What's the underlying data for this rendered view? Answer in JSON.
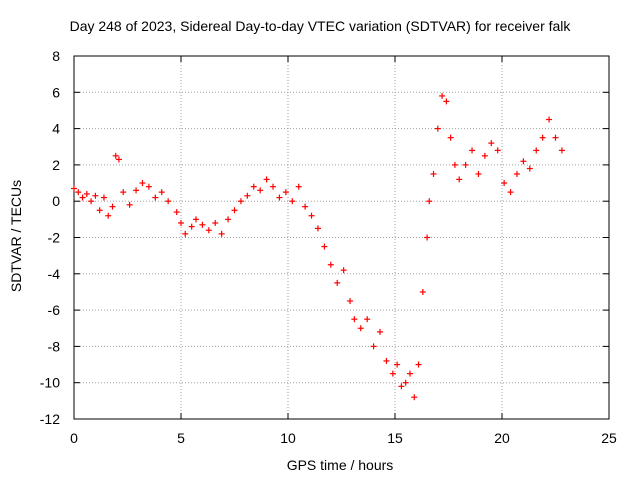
{
  "chart_data": {
    "type": "scatter",
    "title": "Day 248 of 2023, Sidereal Day-to-day VTEC variation (SDTVAR) for receiver falk",
    "xlabel": "GPS time / hours",
    "ylabel": "SDTVAR / TECUs",
    "xlim": [
      0,
      25
    ],
    "ylim": [
      -12,
      8
    ],
    "xticks": [
      0,
      5,
      10,
      15,
      20,
      25
    ],
    "yticks": [
      -12,
      -10,
      -8,
      -6,
      -4,
      -2,
      0,
      2,
      4,
      6,
      8
    ],
    "grid": true,
    "marker": "+",
    "color": "#ff0000",
    "series": [
      {
        "name": "SDTVAR",
        "x": [
          0.0,
          0.2,
          0.4,
          0.6,
          0.8,
          1.0,
          1.2,
          1.4,
          1.6,
          1.8,
          1.95,
          2.1,
          2.3,
          2.6,
          2.9,
          3.2,
          3.5,
          3.8,
          4.1,
          4.4,
          4.8,
          5.0,
          5.2,
          5.5,
          5.7,
          6.0,
          6.3,
          6.6,
          6.9,
          7.2,
          7.5,
          7.8,
          8.1,
          8.4,
          8.7,
          9.0,
          9.3,
          9.6,
          9.9,
          10.2,
          10.5,
          10.8,
          11.1,
          11.4,
          11.7,
          12.0,
          12.3,
          12.6,
          12.9,
          13.1,
          13.4,
          13.7,
          14.0,
          14.3,
          14.6,
          14.9,
          15.1,
          15.3,
          15.5,
          15.7,
          15.9,
          16.1,
          16.3,
          16.5,
          16.6,
          16.8,
          17.0,
          17.2,
          17.4,
          17.6,
          17.8,
          18.0,
          18.3,
          18.6,
          18.9,
          19.2,
          19.5,
          19.8,
          20.1,
          20.4,
          20.7,
          21.0,
          21.3,
          21.6,
          21.9,
          22.2,
          22.5,
          22.8
        ],
        "y": [
          0.7,
          0.5,
          0.2,
          0.4,
          0.0,
          0.3,
          -0.5,
          0.2,
          -0.8,
          -0.3,
          2.5,
          2.3,
          0.5,
          -0.2,
          0.6,
          1.0,
          0.8,
          0.2,
          0.5,
          0.0,
          -0.6,
          -1.2,
          -1.8,
          -1.4,
          -1.0,
          -1.3,
          -1.6,
          -1.2,
          -1.8,
          -1.0,
          -0.5,
          0.0,
          0.3,
          0.8,
          0.6,
          1.2,
          0.8,
          0.2,
          0.5,
          0.0,
          0.8,
          -0.3,
          -0.8,
          -1.5,
          -2.5,
          -3.5,
          -4.5,
          -3.8,
          -5.5,
          -6.5,
          -7.0,
          -6.5,
          -8.0,
          -7.2,
          -8.8,
          -9.5,
          -9.0,
          -10.2,
          -10.0,
          -9.5,
          -10.8,
          -9.0,
          -5.0,
          -2.0,
          0.0,
          1.5,
          4.0,
          5.8,
          5.5,
          3.5,
          2.0,
          1.2,
          2.0,
          2.8,
          1.5,
          2.5,
          3.2,
          2.8,
          1.0,
          0.5,
          1.5,
          2.2,
          1.8,
          2.8,
          3.5,
          4.5,
          3.5,
          2.8
        ]
      }
    ]
  }
}
